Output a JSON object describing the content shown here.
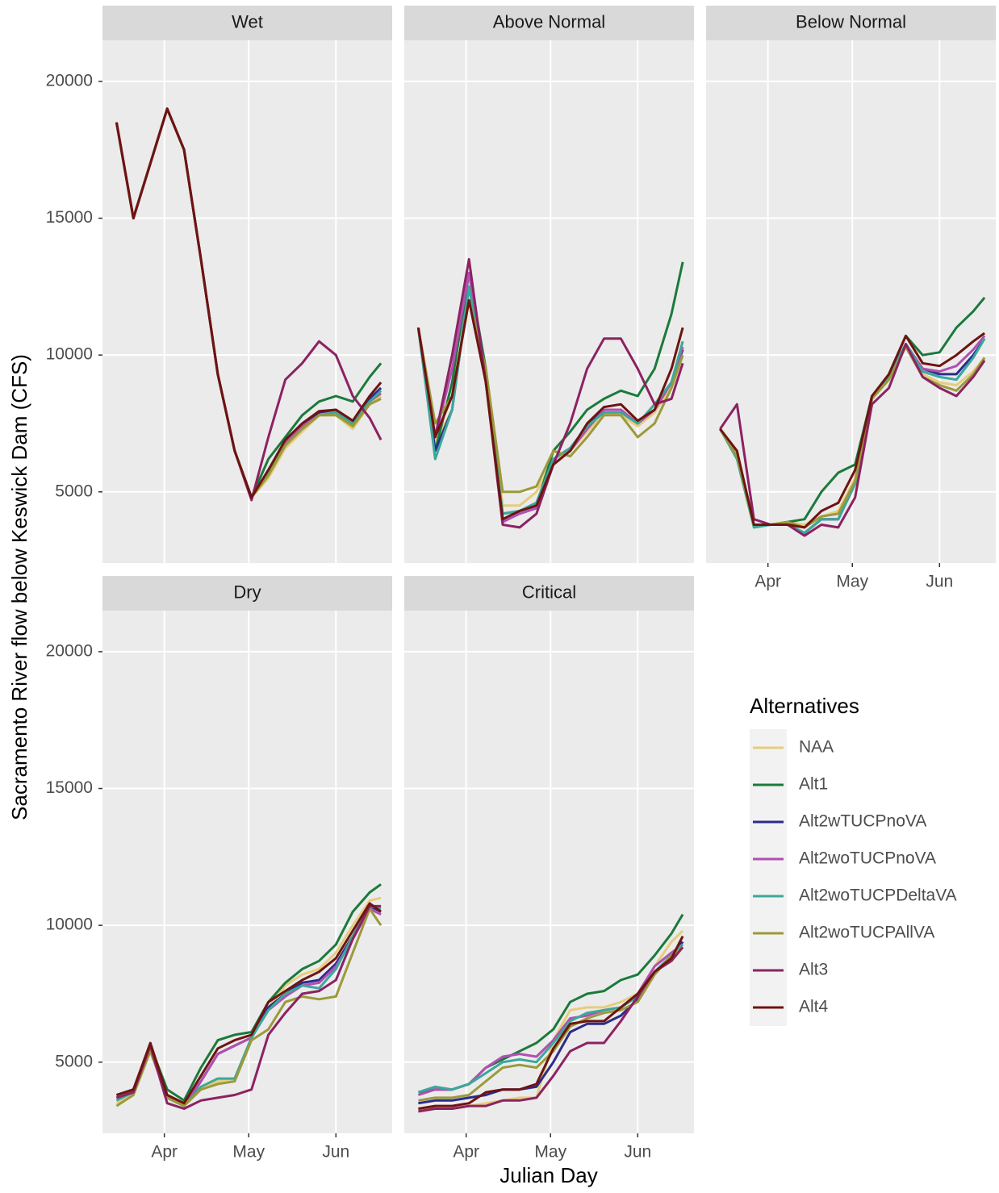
{
  "chart_data": [
    {
      "type": "line",
      "title": "Wet",
      "y_label": "Sacramento River flow below Keswick Dam (CFS)",
      "x_label": "Julian Day",
      "legend_title": "Alternatives",
      "xlim": [
        69,
        172
      ],
      "ylim": [
        2400,
        21500
      ],
      "xticks": [
        {
          "value": 91,
          "label": "Apr"
        },
        {
          "value": 121,
          "label": "May"
        },
        {
          "value": 152,
          "label": "Jun"
        }
      ],
      "yticks": [
        5000,
        10000,
        15000,
        20000
      ],
      "x": [
        74,
        80,
        86,
        92,
        98,
        104,
        110,
        116,
        122,
        128,
        134,
        140,
        146,
        152,
        158,
        164,
        168
      ],
      "series": [
        {
          "name": "NAA",
          "color": "#e6cd7c",
          "values": [
            18500,
            15000,
            17000,
            19000,
            17500,
            13500,
            9300,
            6500,
            4800,
            5500,
            6600,
            7200,
            7800,
            7800,
            7300,
            8200,
            8500
          ]
        },
        {
          "name": "Alt1",
          "color": "#1b7a3b",
          "values": [
            18500,
            15000,
            17000,
            19000,
            17500,
            13500,
            9300,
            6500,
            4800,
            6200,
            7000,
            7800,
            8300,
            8500,
            8300,
            9200,
            9700
          ]
        },
        {
          "name": "Alt2wTUCPnoVA",
          "color": "#2b2b8c",
          "values": [
            18500,
            15000,
            17000,
            19000,
            17500,
            13500,
            9300,
            6500,
            4800,
            5800,
            6800,
            7400,
            7900,
            8000,
            7600,
            8400,
            8800
          ]
        },
        {
          "name": "Alt2woTUCPnoVA",
          "color": "#b24fb2",
          "values": [
            18500,
            15000,
            17000,
            19000,
            17500,
            13500,
            9300,
            6500,
            4800,
            5700,
            6800,
            7400,
            7800,
            7900,
            7500,
            8300,
            8600
          ]
        },
        {
          "name": "Alt2woTUCPDeltaVA",
          "color": "#3aa89b",
          "values": [
            18500,
            15000,
            17000,
            19000,
            17500,
            13500,
            9300,
            6500,
            4800,
            5700,
            6700,
            7300,
            7800,
            7900,
            7500,
            8300,
            8700
          ]
        },
        {
          "name": "Alt2woTUCPAllVA",
          "color": "#9c9a3a",
          "values": [
            18500,
            15000,
            17000,
            19000,
            17500,
            13500,
            9300,
            6500,
            4800,
            5600,
            6700,
            7300,
            7800,
            7800,
            7400,
            8200,
            8400
          ]
        },
        {
          "name": "Alt3",
          "color": "#8c2262",
          "values": [
            18500,
            15000,
            17000,
            19000,
            17500,
            13500,
            9300,
            6500,
            4700,
            7000,
            9100,
            9700,
            10500,
            10000,
            8500,
            7700,
            6900
          ]
        },
        {
          "name": "Alt4",
          "color": "#6e1410",
          "values": [
            18500,
            15000,
            17000,
            19000,
            17500,
            13500,
            9300,
            6500,
            4800,
            5800,
            6900,
            7500,
            7950,
            8000,
            7600,
            8500,
            9000
          ]
        }
      ]
    },
    {
      "type": "line",
      "title": "Above Normal",
      "x": [
        74,
        80,
        86,
        92,
        98,
        104,
        110,
        116,
        122,
        128,
        134,
        140,
        146,
        152,
        158,
        164,
        168
      ],
      "series": [
        {
          "name": "NAA",
          "color": "#e6cd7c",
          "values": [
            11000,
            6800,
            8000,
            12500,
            9000,
            4500,
            4500,
            5000,
            6200,
            6500,
            7200,
            7900,
            7800,
            7400,
            7900,
            8800,
            10000
          ]
        },
        {
          "name": "Alt1",
          "color": "#1b7a3b",
          "values": [
            11000,
            6500,
            9000,
            13000,
            9500,
            4000,
            4300,
            4500,
            6500,
            7200,
            8000,
            8400,
            8700,
            8500,
            9500,
            11500,
            13400
          ]
        },
        {
          "name": "Alt2wTUCPnoVA",
          "color": "#2b2b8c",
          "values": [
            11000,
            6500,
            8000,
            12500,
            9000,
            4200,
            4300,
            4600,
            6200,
            6600,
            7400,
            8000,
            8000,
            7500,
            8000,
            9000,
            10200
          ]
        },
        {
          "name": "Alt2woTUCPnoVA",
          "color": "#b24fb2",
          "values": [
            11000,
            7000,
            9500,
            13000,
            9200,
            3900,
            4200,
            4400,
            6000,
            6500,
            7300,
            8000,
            8000,
            7500,
            8000,
            9000,
            10300
          ]
        },
        {
          "name": "Alt2woTUCPDeltaVA",
          "color": "#3aa89b",
          "values": [
            11000,
            6200,
            8000,
            12500,
            9000,
            4200,
            4300,
            4600,
            6200,
            6600,
            7400,
            7900,
            7900,
            7500,
            8200,
            9000,
            10500
          ]
        },
        {
          "name": "Alt2woTUCPAllVA",
          "color": "#9c9a3a",
          "values": [
            11000,
            7500,
            8500,
            12000,
            9500,
            5000,
            5000,
            5200,
            6500,
            6300,
            7000,
            7800,
            7800,
            7000,
            7500,
            8800,
            10000
          ]
        },
        {
          "name": "Alt3",
          "color": "#8c2262",
          "values": [
            11000,
            7000,
            10000,
            13500,
            9000,
            3800,
            3700,
            4200,
            6000,
            7500,
            9500,
            10600,
            10600,
            9500,
            8200,
            8400,
            9700
          ]
        },
        {
          "name": "Alt4",
          "color": "#6e1410",
          "values": [
            11000,
            7000,
            8500,
            12000,
            9000,
            4000,
            4300,
            4500,
            6000,
            6500,
            7500,
            8100,
            8200,
            7600,
            8000,
            9500,
            11000
          ]
        }
      ]
    },
    {
      "type": "line",
      "title": "Below Normal",
      "x": [
        74,
        80,
        86,
        92,
        98,
        104,
        110,
        116,
        122,
        128,
        134,
        140,
        146,
        152,
        158,
        164,
        168
      ],
      "series": [
        {
          "name": "NAA",
          "color": "#e6cd7c",
          "values": [
            7300,
            6300,
            3800,
            3800,
            3900,
            3800,
            4100,
            4300,
            5500,
            8500,
            9200,
            10400,
            9300,
            9000,
            8900,
            9400,
            9900
          ]
        },
        {
          "name": "Alt1",
          "color": "#1b7a3b",
          "values": [
            7300,
            6300,
            3800,
            3800,
            3900,
            4000,
            5000,
            5700,
            6000,
            8500,
            9300,
            10700,
            10000,
            10100,
            11000,
            11600,
            12100
          ]
        },
        {
          "name": "Alt2wTUCPnoVA",
          "color": "#2b2b8c",
          "values": [
            7300,
            6300,
            3800,
            3800,
            3800,
            3500,
            4000,
            4000,
            5300,
            8400,
            9200,
            10400,
            9500,
            9300,
            9300,
            10000,
            10600
          ]
        },
        {
          "name": "Alt2woTUCPnoVA",
          "color": "#b24fb2",
          "values": [
            7300,
            6300,
            3800,
            3800,
            3800,
            3500,
            4000,
            4000,
            5300,
            8400,
            9200,
            10400,
            9500,
            9400,
            9600,
            10200,
            10700
          ]
        },
        {
          "name": "Alt2woTUCPDeltaVA",
          "color": "#3aa89b",
          "values": [
            7300,
            6200,
            3700,
            3800,
            3800,
            3500,
            4000,
            4000,
            5300,
            8400,
            9200,
            10400,
            9400,
            9200,
            9100,
            9900,
            10600
          ]
        },
        {
          "name": "Alt2woTUCPAllVA",
          "color": "#9c9a3a",
          "values": [
            7300,
            6300,
            3800,
            3800,
            3900,
            3700,
            4100,
            4200,
            5400,
            8400,
            9100,
            10300,
            9200,
            8900,
            8700,
            9300,
            9900
          ]
        },
        {
          "name": "Alt3",
          "color": "#8c2262",
          "values": [
            7300,
            8200,
            4000,
            3800,
            3800,
            3400,
            3800,
            3700,
            4800,
            8200,
            8800,
            10400,
            9200,
            8800,
            8500,
            9200,
            9800
          ]
        },
        {
          "name": "Alt4",
          "color": "#6e1410",
          "values": [
            7300,
            6500,
            3800,
            3800,
            3800,
            3700,
            4300,
            4600,
            5800,
            8500,
            9300,
            10700,
            9700,
            9600,
            10000,
            10500,
            10800
          ]
        }
      ]
    },
    {
      "type": "line",
      "title": "Dry",
      "x": [
        74,
        80,
        86,
        92,
        98,
        104,
        110,
        116,
        122,
        128,
        134,
        140,
        146,
        152,
        158,
        164,
        168
      ],
      "series": [
        {
          "name": "NAA",
          "color": "#e6cd7c",
          "values": [
            3500,
            3800,
            5500,
            3700,
            3400,
            4000,
            4300,
            4400,
            5900,
            7000,
            7800,
            8200,
            8400,
            9000,
            10000,
            10900,
            11000
          ]
        },
        {
          "name": "Alt1",
          "color": "#1b7a3b",
          "values": [
            3800,
            4000,
            5600,
            4000,
            3600,
            4800,
            5800,
            6000,
            6100,
            7200,
            7900,
            8400,
            8700,
            9300,
            10500,
            11200,
            11500
          ]
        },
        {
          "name": "Alt2wTUCPnoVA",
          "color": "#2b2b8c",
          "values": [
            3700,
            3900,
            5600,
            3700,
            3400,
            4300,
            5300,
            5600,
            5900,
            7000,
            7500,
            7900,
            8000,
            8600,
            9600,
            10700,
            10500
          ]
        },
        {
          "name": "Alt2woTUCPnoVA",
          "color": "#b24fb2",
          "values": [
            3700,
            3900,
            5600,
            3700,
            3400,
            4300,
            5300,
            5600,
            5900,
            6900,
            7400,
            7800,
            7900,
            8500,
            9500,
            10600,
            10400
          ]
        },
        {
          "name": "Alt2woTUCPDeltaVA",
          "color": "#3aa89b",
          "values": [
            3600,
            3900,
            5500,
            3700,
            3400,
            4100,
            4400,
            4400,
            5900,
            6900,
            7500,
            7800,
            7700,
            8400,
            9600,
            10700,
            10600
          ]
        },
        {
          "name": "Alt2woTUCPAllVA",
          "color": "#9c9a3a",
          "values": [
            3400,
            3800,
            5400,
            3700,
            3400,
            4000,
            4200,
            4300,
            5800,
            6200,
            7200,
            7400,
            7300,
            7400,
            9000,
            10600,
            10000
          ]
        },
        {
          "name": "Alt3",
          "color": "#8c2262",
          "values": [
            3700,
            3900,
            5600,
            3500,
            3300,
            3600,
            3700,
            3800,
            4000,
            6000,
            6800,
            7500,
            7600,
            8000,
            9500,
            10700,
            10700
          ]
        },
        {
          "name": "Alt4",
          "color": "#6e1410",
          "values": [
            3800,
            4000,
            5700,
            3800,
            3500,
            4500,
            5500,
            5800,
            6000,
            7200,
            7600,
            8000,
            8300,
            8800,
            9800,
            10800,
            10500
          ]
        }
      ]
    },
    {
      "type": "line",
      "title": "Critical",
      "x": [
        74,
        80,
        86,
        92,
        98,
        104,
        110,
        116,
        122,
        128,
        134,
        140,
        146,
        152,
        158,
        164,
        168
      ],
      "series": [
        {
          "name": "NAA",
          "color": "#e6cd7c",
          "values": [
            3300,
            3300,
            3300,
            3400,
            3500,
            3600,
            3700,
            3700,
            5800,
            6900,
            7000,
            7000,
            7200,
            7500,
            8500,
            9400,
            9800
          ]
        },
        {
          "name": "Alt1",
          "color": "#1b7a3b",
          "values": [
            3900,
            4000,
            4000,
            4200,
            4800,
            5100,
            5400,
            5700,
            6200,
            7200,
            7500,
            7600,
            8000,
            8200,
            8900,
            9700,
            10400
          ]
        },
        {
          "name": "Alt2wTUCPnoVA",
          "color": "#2b2b8c",
          "values": [
            3500,
            3600,
            3600,
            3700,
            3800,
            4000,
            4000,
            4100,
            5000,
            6100,
            6400,
            6400,
            6700,
            7300,
            8300,
            8800,
            9400
          ]
        },
        {
          "name": "Alt2woTUCPnoVA",
          "color": "#b24fb2",
          "values": [
            3800,
            4000,
            4000,
            4200,
            4800,
            5200,
            5300,
            5200,
            5800,
            6600,
            6700,
            6900,
            7000,
            7500,
            8500,
            9000,
            9300
          ]
        },
        {
          "name": "Alt2woTUCPDeltaVA",
          "color": "#3aa89b",
          "values": [
            3900,
            4100,
            4000,
            4200,
            4600,
            5000,
            5100,
            5000,
            5700,
            6500,
            6800,
            6900,
            7000,
            7400,
            8300,
            8900,
            9300
          ]
        },
        {
          "name": "Alt2woTUCPAllVA",
          "color": "#9c9a3a",
          "values": [
            3600,
            3700,
            3700,
            3800,
            4300,
            4800,
            4900,
            4800,
            5400,
            6300,
            6600,
            6800,
            6900,
            7200,
            8200,
            8900,
            9200
          ]
        },
        {
          "name": "Alt3",
          "color": "#8c2262",
          "values": [
            3200,
            3300,
            3300,
            3400,
            3400,
            3600,
            3600,
            3700,
            4500,
            5400,
            5700,
            5700,
            6500,
            7400,
            8300,
            8700,
            9200
          ]
        },
        {
          "name": "Alt4",
          "color": "#6e1410",
          "values": [
            3300,
            3400,
            3400,
            3500,
            3900,
            4000,
            4000,
            4200,
            5500,
            6400,
            6500,
            6500,
            7000,
            7500,
            8300,
            8800,
            9600
          ]
        }
      ]
    }
  ]
}
